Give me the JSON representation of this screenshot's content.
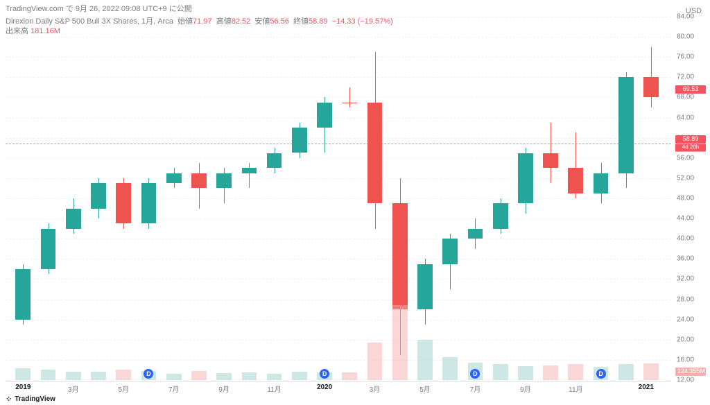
{
  "header": "TradingView.com で 9月 26, 2022 09:08 UTC+9 に公開",
  "legend": {
    "name": "Direxion Daily S&P 500 Bull 3X Shares, 1月, Arca",
    "open_label": "始値",
    "open": "71.97",
    "high_label": "高値",
    "high": "82.52",
    "low_label": "安値",
    "low": "56.56",
    "close_label": "終値",
    "close": "58.89",
    "change": "−14.33 (−19.57%)"
  },
  "volume_legend": {
    "label": "出来高",
    "value": "181.16M"
  },
  "y_unit": "USD",
  "y_axis": {
    "min": 12,
    "max": 84,
    "step": 4
  },
  "close_price": 58.89,
  "close_tag": "58.89",
  "countdown_tag": "4d 20h",
  "last_tag": "69.53",
  "vol_tag": "124.355M",
  "colors": {
    "up": "#26a69a",
    "down": "#ef5350",
    "vol_up": "#9bcfc9",
    "vol_down": "#f3b0ad",
    "grid": "#f0f0f0",
    "text": "#787b86"
  },
  "vol_axis_max": 600,
  "candles": [
    {
      "o": 24,
      "h": 35,
      "l": 23,
      "c": 34,
      "v": 90,
      "up": true
    },
    {
      "o": 34,
      "h": 43,
      "l": 33,
      "c": 42,
      "v": 80,
      "up": true
    },
    {
      "o": 42,
      "h": 48,
      "l": 41,
      "c": 46,
      "v": 65,
      "up": true
    },
    {
      "o": 46,
      "h": 52,
      "l": 44,
      "c": 51,
      "v": 60,
      "up": true
    },
    {
      "o": 51,
      "h": 52,
      "l": 42,
      "c": 43,
      "v": 80,
      "up": false
    },
    {
      "o": 43,
      "h": 52,
      "l": 42,
      "c": 51,
      "v": 70,
      "up": true
    },
    {
      "o": 51,
      "h": 54,
      "l": 50,
      "c": 53,
      "v": 45,
      "up": true
    },
    {
      "o": 53,
      "h": 55,
      "l": 46,
      "c": 50,
      "v": 70,
      "up": false
    },
    {
      "o": 50,
      "h": 54,
      "l": 47,
      "c": 53,
      "v": 50,
      "up": true
    },
    {
      "o": 53,
      "h": 55,
      "l": 50,
      "c": 54,
      "v": 55,
      "up": true
    },
    {
      "o": 54,
      "h": 58,
      "l": 53,
      "c": 57,
      "v": 45,
      "up": true
    },
    {
      "o": 57,
      "h": 63,
      "l": 56,
      "c": 62,
      "v": 60,
      "up": true
    },
    {
      "o": 62,
      "h": 68,
      "l": 57,
      "c": 67,
      "v": 55,
      "up": true
    },
    {
      "o": 67,
      "h": 70,
      "l": 66,
      "c": 67,
      "v": 55,
      "up": false
    },
    {
      "o": 67,
      "h": 77,
      "l": 42,
      "c": 47,
      "v": 280,
      "up": false
    },
    {
      "o": 47,
      "h": 52,
      "l": 17,
      "c": 26,
      "v": 560,
      "up": false
    },
    {
      "o": 26,
      "h": 36,
      "l": 23,
      "c": 35,
      "v": 300,
      "up": true
    },
    {
      "o": 35,
      "h": 41,
      "l": 30,
      "c": 40,
      "v": 170,
      "up": true
    },
    {
      "o": 40,
      "h": 44,
      "l": 38,
      "c": 42,
      "v": 130,
      "up": true
    },
    {
      "o": 42,
      "h": 48,
      "l": 41,
      "c": 47,
      "v": 120,
      "up": true
    },
    {
      "o": 47,
      "h": 58,
      "l": 45,
      "c": 57,
      "v": 105,
      "up": true
    },
    {
      "o": 57,
      "h": 63,
      "l": 51,
      "c": 54,
      "v": 110,
      "up": false
    },
    {
      "o": 54,
      "h": 61,
      "l": 48,
      "c": 49,
      "v": 120,
      "up": false
    },
    {
      "o": 49,
      "h": 55,
      "l": 47,
      "c": 53,
      "v": 100,
      "up": true
    },
    {
      "o": 53,
      "h": 73,
      "l": 50,
      "c": 72,
      "v": 120,
      "up": true
    },
    {
      "o": 72,
      "h": 78,
      "l": 66,
      "c": 68,
      "v": 125,
      "up": false
    }
  ],
  "x_labels": [
    {
      "i": 0,
      "text": "2019",
      "bold": true
    },
    {
      "i": 2,
      "text": "3月"
    },
    {
      "i": 4,
      "text": "5月"
    },
    {
      "i": 6,
      "text": "7月"
    },
    {
      "i": 8,
      "text": "9月"
    },
    {
      "i": 10,
      "text": "11月"
    },
    {
      "i": 12,
      "text": "2020",
      "bold": true
    },
    {
      "i": 14,
      "text": "3月"
    },
    {
      "i": 16,
      "text": "5月"
    },
    {
      "i": 18,
      "text": "7月"
    },
    {
      "i": 20,
      "text": "9月"
    },
    {
      "i": 22,
      "text": "11月"
    },
    {
      "i": 24.8,
      "text": "2021",
      "bold": true
    }
  ],
  "d_markers": [
    5,
    12,
    18,
    23
  ],
  "footer": "TradingView"
}
